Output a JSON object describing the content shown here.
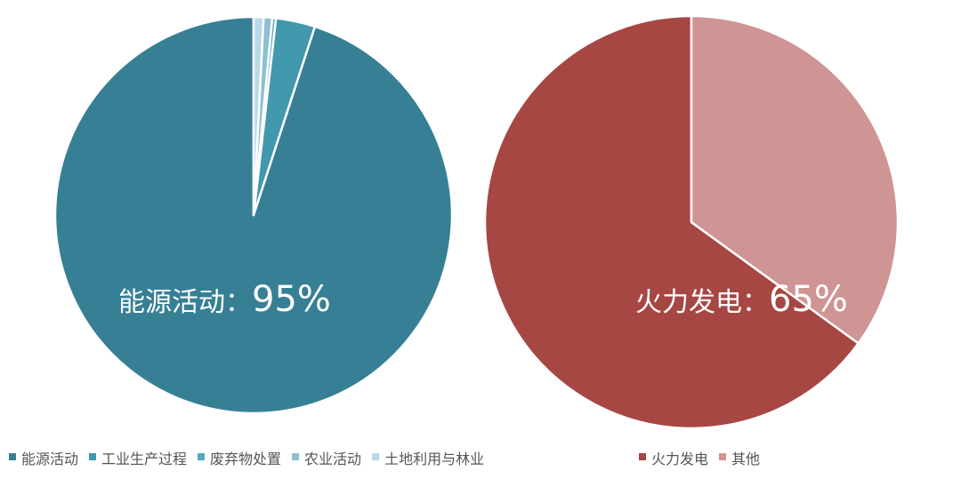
{
  "chart_data": [
    {
      "type": "pie",
      "slices": [
        {
          "label": "能源活动",
          "value": 95,
          "color": "#377f95"
        },
        {
          "label": "工业生产过程",
          "value": 3.2,
          "color": "#4298ad"
        },
        {
          "label": "废弃物处置",
          "value": 0.3,
          "color": "#56a8c0"
        },
        {
          "label": "农业活动",
          "value": 0.7,
          "color": "#8cc0d2"
        },
        {
          "label": "土地利用与林业",
          "value": 0.8,
          "color": "#b9d9e4"
        }
      ],
      "annotation": {
        "label": "能源活动：",
        "value": "95%"
      },
      "legend_position": "bottom"
    },
    {
      "type": "pie",
      "slices": [
        {
          "label": "火力发电",
          "value": 65,
          "color": "#a64744"
        },
        {
          "label": "其他",
          "value": 35,
          "color": "#cf9494"
        }
      ],
      "annotation": {
        "label": "火力发电：",
        "value": "65%"
      },
      "legend_position": "bottom"
    }
  ]
}
